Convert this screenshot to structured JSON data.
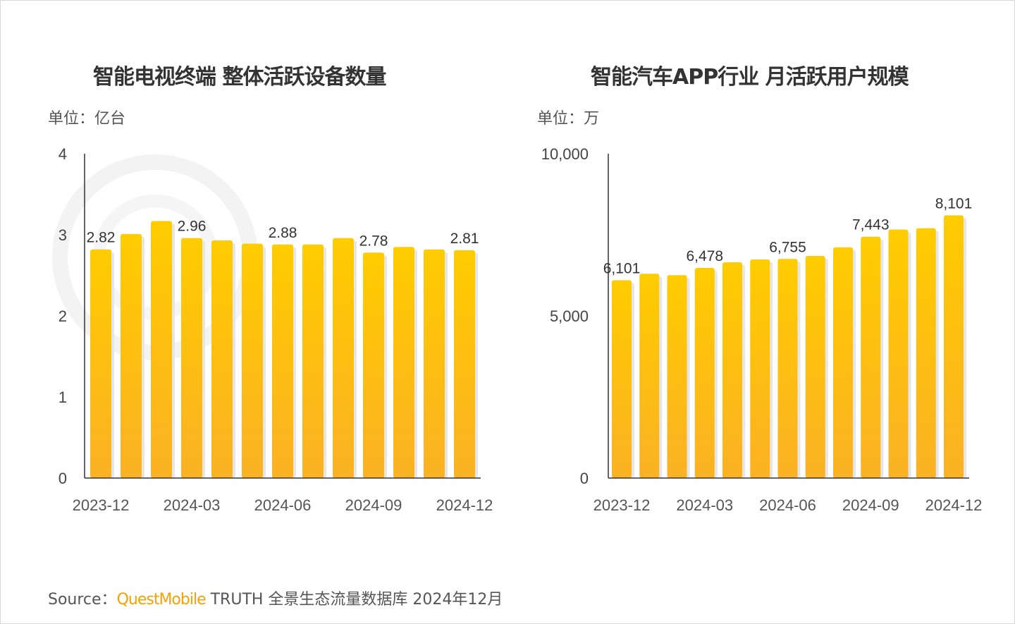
{
  "colors": {
    "bar_top": "#ffcc00",
    "bar_bottom": "#fbb124",
    "text": "#333333",
    "brand": "#f5a200"
  },
  "chart_data": [
    {
      "type": "bar",
      "title": "智能电视终端 整体活跃设备数量",
      "unit_label": "单位：亿台",
      "categories": [
        "2023-12",
        "2024-01",
        "2024-02",
        "2024-03",
        "2024-04",
        "2024-05",
        "2024-06",
        "2024-07",
        "2024-08",
        "2024-09",
        "2024-10",
        "2024-11",
        "2024-12"
      ],
      "values": [
        2.82,
        3.01,
        3.17,
        2.96,
        2.93,
        2.89,
        2.88,
        2.88,
        2.96,
        2.78,
        2.85,
        2.82,
        2.81
      ],
      "data_labels": {
        "0": "2.82",
        "3": "2.96",
        "6": "2.88",
        "9": "2.78",
        "12": "2.81"
      },
      "x_tick_labels": {
        "0": "2023-12",
        "3": "2024-03",
        "6": "2024-06",
        "9": "2024-09",
        "12": "2024-12"
      },
      "y_ticks": [
        {
          "v": 0,
          "label": "0"
        },
        {
          "v": 1,
          "label": "1"
        },
        {
          "v": 2,
          "label": "2"
        },
        {
          "v": 3,
          "label": "3"
        },
        {
          "v": 4,
          "label": "4"
        }
      ],
      "ylim": [
        0,
        4
      ],
      "grid": false
    },
    {
      "type": "bar",
      "title": "智能汽车APP行业 月活跃用户规模",
      "unit_label": "单位：万",
      "categories": [
        "2023-12",
        "2024-01",
        "2024-02",
        "2024-03",
        "2024-04",
        "2024-05",
        "2024-06",
        "2024-07",
        "2024-08",
        "2024-09",
        "2024-10",
        "2024-11",
        "2024-12"
      ],
      "values": [
        6101,
        6299,
        6255,
        6478,
        6651,
        6738,
        6755,
        6848,
        7112,
        7443,
        7662,
        7705,
        8101
      ],
      "data_labels": {
        "0": "6,101",
        "3": "6,478",
        "6": "6,755",
        "9": "7,443",
        "12": "8,101"
      },
      "x_tick_labels": {
        "0": "2023-12",
        "3": "2024-03",
        "6": "2024-06",
        "9": "2024-09",
        "12": "2024-12"
      },
      "y_ticks": [
        {
          "v": 0,
          "label": "0"
        },
        {
          "v": 5000,
          "label": "5,000"
        },
        {
          "v": 10000,
          "label": "10,000"
        }
      ],
      "ylim": [
        0,
        10000
      ],
      "grid": false
    }
  ],
  "footer": {
    "source_label": "Source：",
    "brand": "QuestMobile",
    "rest": " TRUTH 全景生态流量数据库 2024年12月"
  }
}
